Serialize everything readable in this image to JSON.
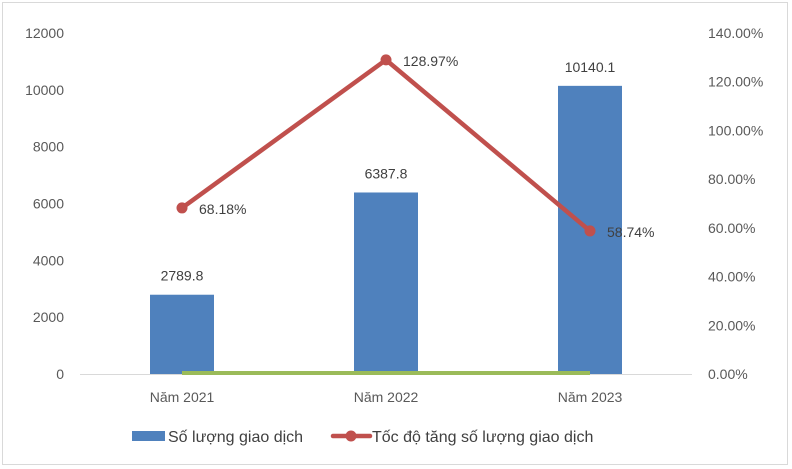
{
  "chart_data": {
    "type": "bar+line",
    "title": "",
    "categories": [
      "Năm 2021",
      "Năm 2022",
      "Năm 2023"
    ],
    "series": [
      {
        "name": "Số lượng giao dịch",
        "type": "bar",
        "axis": "left",
        "values": [
          2789.8,
          6387.8,
          10140.1
        ],
        "labels": [
          "2789.8",
          "6387.8",
          "10140.1"
        ],
        "color": "#4f81bd"
      },
      {
        "name": "Tốc độ tăng số lượng giao dịch",
        "type": "line",
        "axis": "right",
        "values": [
          68.18,
          128.97,
          58.74
        ],
        "labels": [
          "68.18%",
          "128.97%",
          "58.74%"
        ],
        "color": "#c0504d"
      },
      {
        "name": "",
        "type": "line",
        "axis": "left",
        "values": [
          0,
          0,
          0
        ],
        "color": "#9bbb59"
      }
    ],
    "left_axis": {
      "min": 0,
      "max": 12000,
      "ticks": [
        "0",
        "2000",
        "4000",
        "6000",
        "8000",
        "10000",
        "12000"
      ]
    },
    "right_axis": {
      "min": 0,
      "max": 140,
      "ticks": [
        "0.00%",
        "20.00%",
        "40.00%",
        "60.00%",
        "80.00%",
        "100.00%",
        "120.00%",
        "140.00%"
      ]
    },
    "grid": false,
    "legend": {
      "placement": "bottom",
      "entries": [
        "Số lượng giao dịch",
        "Tốc độ tăng số lượng giao dịch"
      ]
    }
  }
}
